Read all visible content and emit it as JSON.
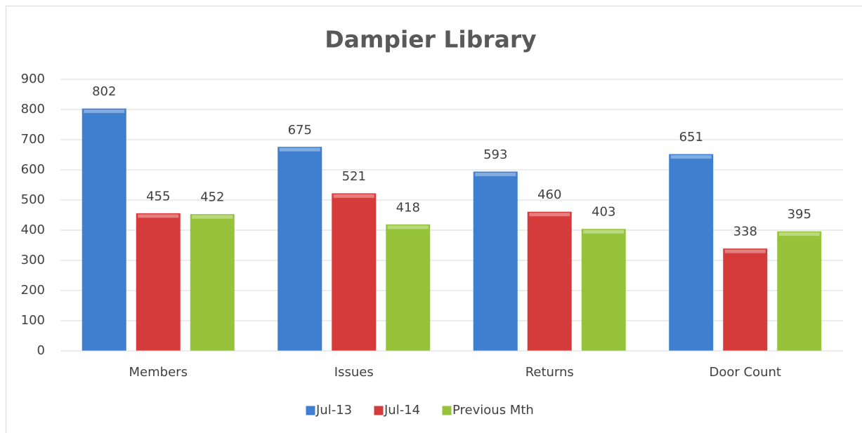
{
  "chart_data": {
    "type": "bar",
    "title": "Dampier Library",
    "categories": [
      "Members",
      "Issues",
      "Returns",
      "Door Count"
    ],
    "series": [
      {
        "name": "Jul-13",
        "color": "#3f7fd0",
        "values": [
          802,
          675,
          593,
          651
        ]
      },
      {
        "name": "Jul-14",
        "color": "#d63b3b",
        "values": [
          455,
          521,
          460,
          338
        ]
      },
      {
        "name": "Previous Mth",
        "color": "#96c33a",
        "values": [
          452,
          418,
          403,
          395
        ]
      }
    ],
    "ylim": [
      0,
      900
    ],
    "yticks": [
      0,
      100,
      200,
      300,
      400,
      500,
      600,
      700,
      800,
      900
    ],
    "grid": true,
    "legend": "bottom"
  }
}
